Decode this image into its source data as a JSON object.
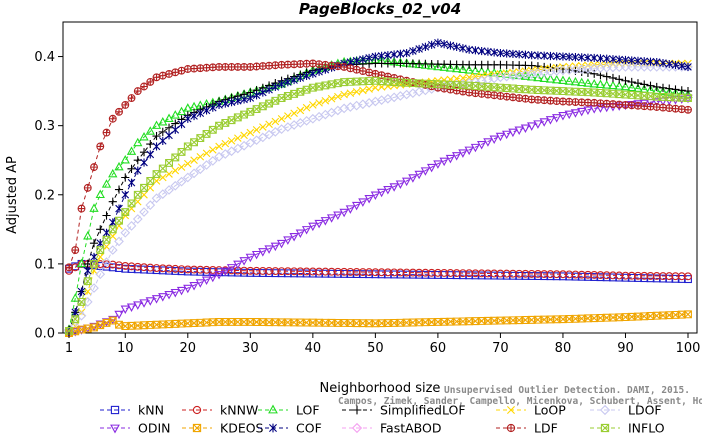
{
  "chart_data": {
    "type": "line",
    "title": "PageBlocks_02_v04",
    "xlabel": "Neighborhood size",
    "ylabel": "Adjusted AP",
    "xlim": [
      1,
      100
    ],
    "ylim": [
      0,
      0.45
    ],
    "xticks": [
      1,
      10,
      20,
      30,
      40,
      50,
      60,
      70,
      80,
      90,
      100
    ],
    "xtick_labels": [
      "1",
      "10",
      "20",
      "30",
      "40",
      "50",
      "60",
      "70",
      "80",
      "90",
      "100"
    ],
    "yticks": [
      0.0,
      0.1,
      0.2,
      0.3,
      0.4
    ],
    "ytick_labels": [
      "0.0",
      "0.1",
      "0.2",
      "0.3",
      "0.4"
    ],
    "grid": false,
    "legend_position": "bottom",
    "watermark": [
      "Unsupervised Outlier Detection. DAMI, 2015.",
      "Campos, Zimek, Sander, Campello, Micenkova, Schubert, Assent, Houle"
    ],
    "series": [
      {
        "name": "kNN",
        "color": "#1f1fcf",
        "marker": "square",
        "dash": "4,3",
        "points": [
          [
            1,
            0.093
          ],
          [
            3,
            0.1
          ],
          [
            5,
            0.098
          ],
          [
            8,
            0.095
          ],
          [
            10,
            0.093
          ],
          [
            15,
            0.091
          ],
          [
            20,
            0.089
          ],
          [
            30,
            0.087
          ],
          [
            40,
            0.086
          ],
          [
            50,
            0.085
          ],
          [
            60,
            0.084
          ],
          [
            70,
            0.083
          ],
          [
            80,
            0.082
          ],
          [
            90,
            0.08
          ],
          [
            100,
            0.078
          ]
        ]
      },
      {
        "name": "kNNW",
        "color": "#cc2020",
        "marker": "circle",
        "dash": "4,3",
        "points": [
          [
            1,
            0.09
          ],
          [
            3,
            0.1
          ],
          [
            5,
            0.1
          ],
          [
            8,
            0.099
          ],
          [
            10,
            0.097
          ],
          [
            15,
            0.094
          ],
          [
            20,
            0.092
          ],
          [
            30,
            0.09
          ],
          [
            40,
            0.089
          ],
          [
            50,
            0.088
          ],
          [
            60,
            0.087
          ],
          [
            70,
            0.086
          ],
          [
            80,
            0.085
          ],
          [
            90,
            0.083
          ],
          [
            100,
            0.082
          ]
        ]
      },
      {
        "name": "LOF",
        "color": "#22dd22",
        "marker": "triangle-up",
        "dash": "4,3",
        "points": [
          [
            1,
            0.005
          ],
          [
            2,
            0.05
          ],
          [
            3,
            0.1
          ],
          [
            4,
            0.14
          ],
          [
            5,
            0.18
          ],
          [
            6,
            0.2
          ],
          [
            8,
            0.23
          ],
          [
            10,
            0.25
          ],
          [
            12,
            0.275
          ],
          [
            15,
            0.3
          ],
          [
            20,
            0.325
          ],
          [
            25,
            0.335
          ],
          [
            30,
            0.348
          ],
          [
            35,
            0.36
          ],
          [
            40,
            0.38
          ],
          [
            45,
            0.392
          ],
          [
            50,
            0.395
          ],
          [
            55,
            0.39
          ],
          [
            60,
            0.385
          ],
          [
            65,
            0.38
          ],
          [
            70,
            0.375
          ],
          [
            75,
            0.37
          ],
          [
            80,
            0.365
          ],
          [
            85,
            0.36
          ],
          [
            90,
            0.356
          ],
          [
            95,
            0.35
          ],
          [
            100,
            0.345
          ]
        ]
      },
      {
        "name": "SimplifiedLOF",
        "color": "#000000",
        "marker": "plus",
        "dash": "4,3",
        "points": [
          [
            1,
            0.005
          ],
          [
            2,
            0.03
          ],
          [
            3,
            0.06
          ],
          [
            4,
            0.1
          ],
          [
            5,
            0.13
          ],
          [
            6,
            0.15
          ],
          [
            8,
            0.19
          ],
          [
            10,
            0.225
          ],
          [
            12,
            0.25
          ],
          [
            15,
            0.285
          ],
          [
            20,
            0.315
          ],
          [
            25,
            0.335
          ],
          [
            30,
            0.348
          ],
          [
            35,
            0.365
          ],
          [
            40,
            0.38
          ],
          [
            45,
            0.388
          ],
          [
            50,
            0.39
          ],
          [
            55,
            0.39
          ],
          [
            60,
            0.389
          ],
          [
            65,
            0.388
          ],
          [
            70,
            0.388
          ],
          [
            75,
            0.387
          ],
          [
            80,
            0.382
          ],
          [
            85,
            0.375
          ],
          [
            90,
            0.365
          ],
          [
            95,
            0.356
          ],
          [
            100,
            0.35
          ]
        ]
      },
      {
        "name": "LoOP",
        "color": "#ffd700",
        "marker": "x",
        "dash": "4,3",
        "points": [
          [
            1,
            0.002
          ],
          [
            2,
            0.01
          ],
          [
            3,
            0.03
          ],
          [
            4,
            0.06
          ],
          [
            5,
            0.09
          ],
          [
            6,
            0.11
          ],
          [
            8,
            0.14
          ],
          [
            10,
            0.17
          ],
          [
            12,
            0.19
          ],
          [
            15,
            0.22
          ],
          [
            20,
            0.245
          ],
          [
            25,
            0.27
          ],
          [
            30,
            0.29
          ],
          [
            35,
            0.31
          ],
          [
            40,
            0.33
          ],
          [
            45,
            0.345
          ],
          [
            50,
            0.355
          ],
          [
            55,
            0.36
          ],
          [
            60,
            0.365
          ],
          [
            65,
            0.37
          ],
          [
            70,
            0.375
          ],
          [
            75,
            0.38
          ],
          [
            80,
            0.385
          ],
          [
            85,
            0.388
          ],
          [
            90,
            0.39
          ],
          [
            95,
            0.39
          ],
          [
            100,
            0.39
          ]
        ]
      },
      {
        "name": "LDOF",
        "color": "#c8c8f0",
        "marker": "diamond",
        "dash": "4,3",
        "points": [
          [
            1,
            0.002
          ],
          [
            2,
            0.01
          ],
          [
            3,
            0.025
          ],
          [
            4,
            0.045
          ],
          [
            5,
            0.065
          ],
          [
            6,
            0.085
          ],
          [
            8,
            0.12
          ],
          [
            10,
            0.145
          ],
          [
            12,
            0.165
          ],
          [
            15,
            0.195
          ],
          [
            20,
            0.225
          ],
          [
            25,
            0.255
          ],
          [
            30,
            0.275
          ],
          [
            35,
            0.295
          ],
          [
            40,
            0.31
          ],
          [
            45,
            0.325
          ],
          [
            50,
            0.335
          ],
          [
            55,
            0.345
          ],
          [
            60,
            0.355
          ],
          [
            65,
            0.362
          ],
          [
            70,
            0.37
          ],
          [
            75,
            0.375
          ],
          [
            80,
            0.38
          ],
          [
            85,
            0.383
          ],
          [
            90,
            0.385
          ],
          [
            95,
            0.385
          ],
          [
            100,
            0.385
          ]
        ]
      },
      {
        "name": "ODIN",
        "color": "#8a2be2",
        "marker": "triangle-down",
        "dash": "4,3",
        "points": [
          [
            1,
            0.0
          ],
          [
            3,
            0.005
          ],
          [
            5,
            0.01
          ],
          [
            8,
            0.02
          ],
          [
            10,
            0.035
          ],
          [
            15,
            0.05
          ],
          [
            20,
            0.065
          ],
          [
            25,
            0.085
          ],
          [
            30,
            0.11
          ],
          [
            35,
            0.13
          ],
          [
            40,
            0.155
          ],
          [
            45,
            0.175
          ],
          [
            50,
            0.2
          ],
          [
            55,
            0.22
          ],
          [
            60,
            0.245
          ],
          [
            65,
            0.265
          ],
          [
            70,
            0.285
          ],
          [
            75,
            0.3
          ],
          [
            80,
            0.315
          ],
          [
            85,
            0.325
          ],
          [
            90,
            0.33
          ],
          [
            95,
            0.335
          ],
          [
            100,
            0.34
          ]
        ]
      },
      {
        "name": "KDEOS",
        "color": "#f0a500",
        "marker": "square-x",
        "dash": "4,3",
        "points": [
          [
            1,
            0.0
          ],
          [
            3,
            0.005
          ],
          [
            5,
            0.008
          ],
          [
            8,
            0.018
          ],
          [
            9,
            0.012
          ],
          [
            10,
            0.01
          ],
          [
            15,
            0.012
          ],
          [
            20,
            0.014
          ],
          [
            25,
            0.016
          ],
          [
            30,
            0.016
          ],
          [
            40,
            0.015
          ],
          [
            50,
            0.014
          ],
          [
            60,
            0.016
          ],
          [
            70,
            0.018
          ],
          [
            80,
            0.02
          ],
          [
            90,
            0.023
          ],
          [
            95,
            0.025
          ],
          [
            100,
            0.027
          ]
        ]
      },
      {
        "name": "COF",
        "color": "#000080",
        "marker": "asterisk",
        "dash": "4,3",
        "points": [
          [
            1,
            0.003
          ],
          [
            2,
            0.03
          ],
          [
            3,
            0.06
          ],
          [
            4,
            0.09
          ],
          [
            5,
            0.11
          ],
          [
            6,
            0.13
          ],
          [
            8,
            0.16
          ],
          [
            10,
            0.2
          ],
          [
            12,
            0.235
          ],
          [
            15,
            0.27
          ],
          [
            20,
            0.31
          ],
          [
            25,
            0.33
          ],
          [
            30,
            0.34
          ],
          [
            35,
            0.36
          ],
          [
            40,
            0.375
          ],
          [
            45,
            0.39
          ],
          [
            50,
            0.4
          ],
          [
            55,
            0.405
          ],
          [
            60,
            0.42
          ],
          [
            65,
            0.41
          ],
          [
            70,
            0.405
          ],
          [
            75,
            0.402
          ],
          [
            80,
            0.4
          ],
          [
            85,
            0.398
          ],
          [
            90,
            0.395
          ],
          [
            95,
            0.392
          ],
          [
            100,
            0.385
          ]
        ]
      },
      {
        "name": "FastABOD",
        "color": "#f4a0f0",
        "marker": "diamond",
        "dash": "4,3",
        "points": []
      },
      {
        "name": "LDF",
        "color": "#b22222",
        "marker": "circle-plus",
        "dash": "4,3",
        "points": [
          [
            1,
            0.095
          ],
          [
            2,
            0.12
          ],
          [
            3,
            0.18
          ],
          [
            4,
            0.21
          ],
          [
            5,
            0.24
          ],
          [
            6,
            0.27
          ],
          [
            8,
            0.31
          ],
          [
            10,
            0.33
          ],
          [
            12,
            0.35
          ],
          [
            15,
            0.37
          ],
          [
            20,
            0.382
          ],
          [
            25,
            0.385
          ],
          [
            30,
            0.385
          ],
          [
            35,
            0.388
          ],
          [
            40,
            0.39
          ],
          [
            45,
            0.385
          ],
          [
            50,
            0.375
          ],
          [
            55,
            0.365
          ],
          [
            60,
            0.355
          ],
          [
            65,
            0.348
          ],
          [
            70,
            0.343
          ],
          [
            75,
            0.338
          ],
          [
            80,
            0.335
          ],
          [
            85,
            0.333
          ],
          [
            90,
            0.33
          ],
          [
            95,
            0.327
          ],
          [
            100,
            0.323
          ]
        ]
      },
      {
        "name": "INFLO",
        "color": "#9acd32",
        "marker": "square-x",
        "dash": "4,3",
        "points": [
          [
            1,
            0.003
          ],
          [
            2,
            0.02
          ],
          [
            3,
            0.045
          ],
          [
            4,
            0.075
          ],
          [
            5,
            0.1
          ],
          [
            6,
            0.12
          ],
          [
            8,
            0.15
          ],
          [
            10,
            0.175
          ],
          [
            12,
            0.2
          ],
          [
            15,
            0.23
          ],
          [
            20,
            0.27
          ],
          [
            25,
            0.3
          ],
          [
            30,
            0.32
          ],
          [
            35,
            0.34
          ],
          [
            40,
            0.355
          ],
          [
            45,
            0.363
          ],
          [
            50,
            0.365
          ],
          [
            55,
            0.362
          ],
          [
            60,
            0.36
          ],
          [
            65,
            0.358
          ],
          [
            70,
            0.355
          ],
          [
            75,
            0.352
          ],
          [
            80,
            0.35
          ],
          [
            85,
            0.348
          ],
          [
            90,
            0.345
          ],
          [
            95,
            0.342
          ],
          [
            100,
            0.34
          ]
        ]
      }
    ]
  }
}
